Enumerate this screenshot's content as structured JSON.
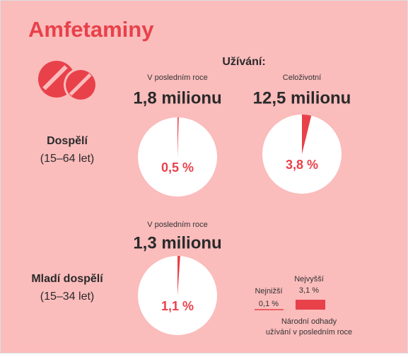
{
  "title": "Amfetaminy",
  "usage_label": "Užívání:",
  "groups": [
    {
      "label": "Dospělí",
      "age": "(15–64 let)"
    },
    {
      "label": "Mladí dospělí",
      "age": "(15–34 let)"
    }
  ],
  "pies": [
    {
      "caption": "V posledním roce",
      "total": "1,8 milionu",
      "value": 0.5,
      "value_label": "0,5 %"
    },
    {
      "caption": "Celoživotní",
      "total": "12,5 milionu",
      "value": 3.8,
      "value_label": "3,8 %"
    },
    {
      "caption": "V posledním roce",
      "total": "1,3 milionu",
      "value": 1.1,
      "value_label": "1,1 %"
    }
  ],
  "legend": {
    "low_label": "Nejnižší",
    "low_value": "0,1 %",
    "high_label": "Nejvyšší",
    "high_value": "3,1 %",
    "note": [
      "Národní odhady",
      "užívání v posledním roce"
    ]
  }
}
